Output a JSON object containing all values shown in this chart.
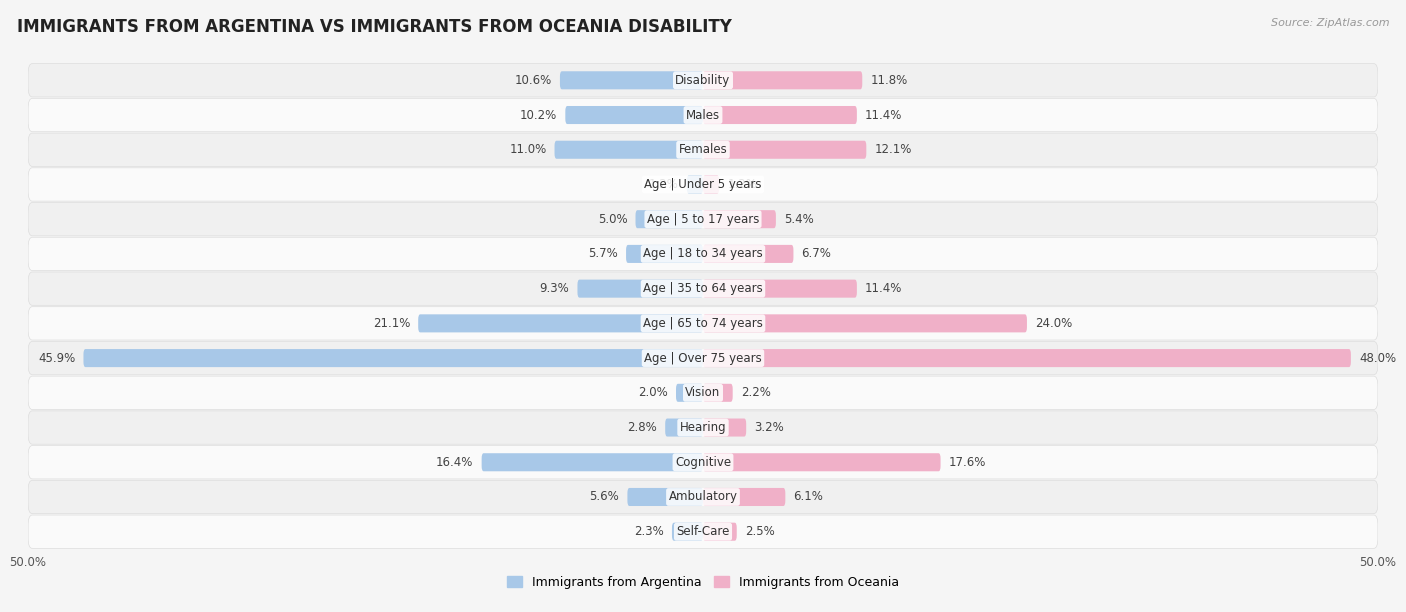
{
  "title": "IMMIGRANTS FROM ARGENTINA VS IMMIGRANTS FROM OCEANIA DISABILITY",
  "source": "Source: ZipAtlas.com",
  "categories": [
    "Disability",
    "Males",
    "Females",
    "Age | Under 5 years",
    "Age | 5 to 17 years",
    "Age | 18 to 34 years",
    "Age | 35 to 64 years",
    "Age | 65 to 74 years",
    "Age | Over 75 years",
    "Vision",
    "Hearing",
    "Cognitive",
    "Ambulatory",
    "Self-Care"
  ],
  "argentina_values": [
    10.6,
    10.2,
    11.0,
    1.2,
    5.0,
    5.7,
    9.3,
    21.1,
    45.9,
    2.0,
    2.8,
    16.4,
    5.6,
    2.3
  ],
  "oceania_values": [
    11.8,
    11.4,
    12.1,
    1.2,
    5.4,
    6.7,
    11.4,
    24.0,
    48.0,
    2.2,
    3.2,
    17.6,
    6.1,
    2.5
  ],
  "argentina_color": "#a8c8e8",
  "argentina_color_dark": "#7aaed4",
  "oceania_color": "#f0b0c8",
  "oceania_color_dark": "#e87aa0",
  "background_color": "#f5f5f5",
  "row_bg_even": "#f0f0f0",
  "row_bg_odd": "#fafafa",
  "axis_max": 50.0,
  "legend_argentina": "Immigrants from Argentina",
  "legend_oceania": "Immigrants from Oceania",
  "title_fontsize": 12,
  "label_fontsize": 8.5,
  "value_fontsize": 8.5,
  "axis_tick_fontsize": 8.5
}
